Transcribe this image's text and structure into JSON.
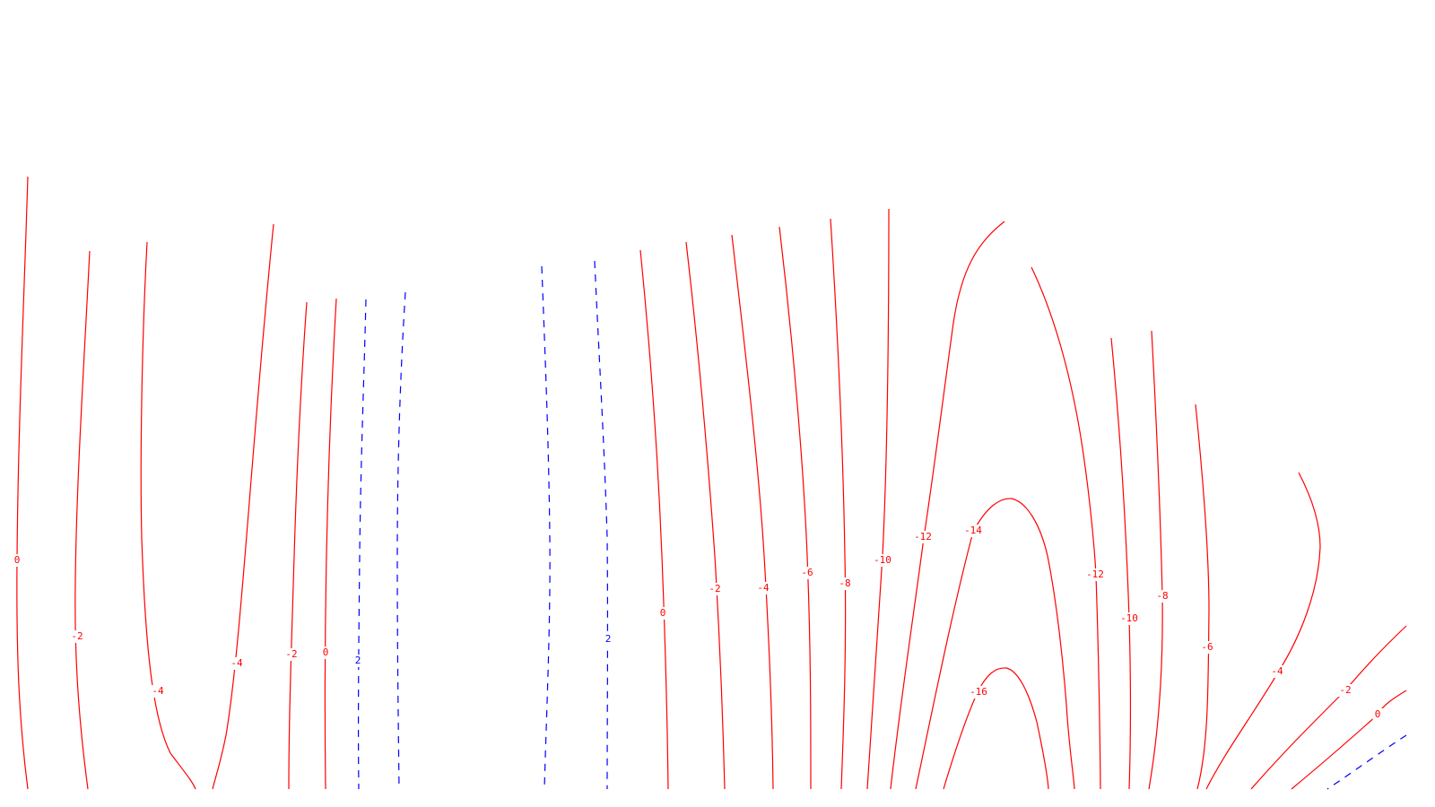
{
  "colors": {
    "background": "#ffffff",
    "negative": "#ff0000",
    "positive": "#0000ff"
  },
  "chart_data": {
    "type": "contour",
    "title": "",
    "xlabel": "",
    "ylabel": "",
    "grid": false,
    "legend": "none",
    "contour_levels": [
      {
        "value": 0,
        "label": "0",
        "sign": "negative",
        "style": "solid"
      },
      {
        "value": -2,
        "label": "-2",
        "sign": "negative",
        "style": "solid"
      },
      {
        "value": -4,
        "label": "-4",
        "sign": "negative",
        "style": "solid"
      },
      {
        "value": -4,
        "label": "-4",
        "sign": "negative",
        "style": "solid"
      },
      {
        "value": -2,
        "label": "-2",
        "sign": "negative",
        "style": "solid"
      },
      {
        "value": 0,
        "label": "0",
        "sign": "negative",
        "style": "solid"
      },
      {
        "value": 2,
        "label": "2",
        "sign": "positive",
        "style": "dashed"
      },
      {
        "value": 2,
        "label": "",
        "sign": "positive",
        "style": "dashed"
      },
      {
        "value": 2,
        "label": "",
        "sign": "positive",
        "style": "dashed"
      },
      {
        "value": 2,
        "label": "2",
        "sign": "positive",
        "style": "dashed"
      },
      {
        "value": 0,
        "label": "0",
        "sign": "negative",
        "style": "solid"
      },
      {
        "value": -2,
        "label": "-2",
        "sign": "negative",
        "style": "solid"
      },
      {
        "value": -4,
        "label": "-4",
        "sign": "negative",
        "style": "solid"
      },
      {
        "value": -6,
        "label": "-6",
        "sign": "negative",
        "style": "solid"
      },
      {
        "value": -8,
        "label": "-8",
        "sign": "negative",
        "style": "solid"
      },
      {
        "value": -10,
        "label": "-10",
        "sign": "negative",
        "style": "solid"
      },
      {
        "value": -12,
        "label": "-12",
        "sign": "negative",
        "style": "solid"
      },
      {
        "value": -14,
        "label": "-14",
        "sign": "negative",
        "style": "solid"
      },
      {
        "value": -16,
        "label": "-16",
        "sign": "negative",
        "style": "solid"
      },
      {
        "value": -12,
        "label": "-12",
        "sign": "negative",
        "style": "solid"
      },
      {
        "value": -10,
        "label": "-10",
        "sign": "negative",
        "style": "solid"
      },
      {
        "value": -8,
        "label": "-8",
        "sign": "negative",
        "style": "solid"
      },
      {
        "value": -6,
        "label": "-6",
        "sign": "negative",
        "style": "solid"
      },
      {
        "value": -4,
        "label": "-4",
        "sign": "negative",
        "style": "solid"
      },
      {
        "value": -2,
        "label": "-2",
        "sign": "negative",
        "style": "solid"
      },
      {
        "value": 0,
        "label": "0",
        "sign": "negative",
        "style": "solid"
      },
      {
        "value": 2,
        "label": "",
        "sign": "positive",
        "style": "dashed"
      }
    ]
  }
}
